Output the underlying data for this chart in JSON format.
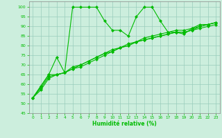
{
  "title": "",
  "xlabel": "Humidité relative (%)",
  "ylabel": "",
  "background_color": "#cceedd",
  "grid_color": "#99ccbb",
  "line_color": "#00bb00",
  "xlim": [
    -0.5,
    23.5
  ],
  "ylim": [
    45,
    103
  ],
  "yticks": [
    45,
    50,
    55,
    60,
    65,
    70,
    75,
    80,
    85,
    90,
    95,
    100
  ],
  "xticks": [
    0,
    1,
    2,
    3,
    4,
    5,
    6,
    7,
    8,
    9,
    10,
    11,
    12,
    13,
    14,
    15,
    16,
    17,
    18,
    19,
    20,
    21,
    22,
    23
  ],
  "series1": [
    53,
    59,
    65,
    74,
    66,
    100,
    100,
    100,
    100,
    93,
    88,
    88,
    85,
    95,
    100,
    100,
    93,
    87,
    87,
    86,
    89,
    91,
    91,
    92
  ],
  "series2": [
    53,
    58,
    64,
    65,
    66,
    68,
    70,
    72,
    74,
    76,
    77,
    79,
    80,
    82,
    83,
    84,
    85,
    86,
    87,
    87,
    88,
    90,
    91,
    92
  ],
  "series3": [
    53,
    57,
    63,
    65,
    66,
    69,
    70,
    72,
    74,
    76,
    78,
    79,
    81,
    82,
    84,
    85,
    86,
    87,
    88,
    88,
    89,
    90,
    91,
    92
  ],
  "series4": [
    53,
    59,
    65,
    65,
    66,
    68,
    69,
    71,
    73,
    75,
    77,
    79,
    80,
    82,
    83,
    84,
    85,
    86,
    87,
    87,
    88,
    89,
    90,
    91
  ]
}
